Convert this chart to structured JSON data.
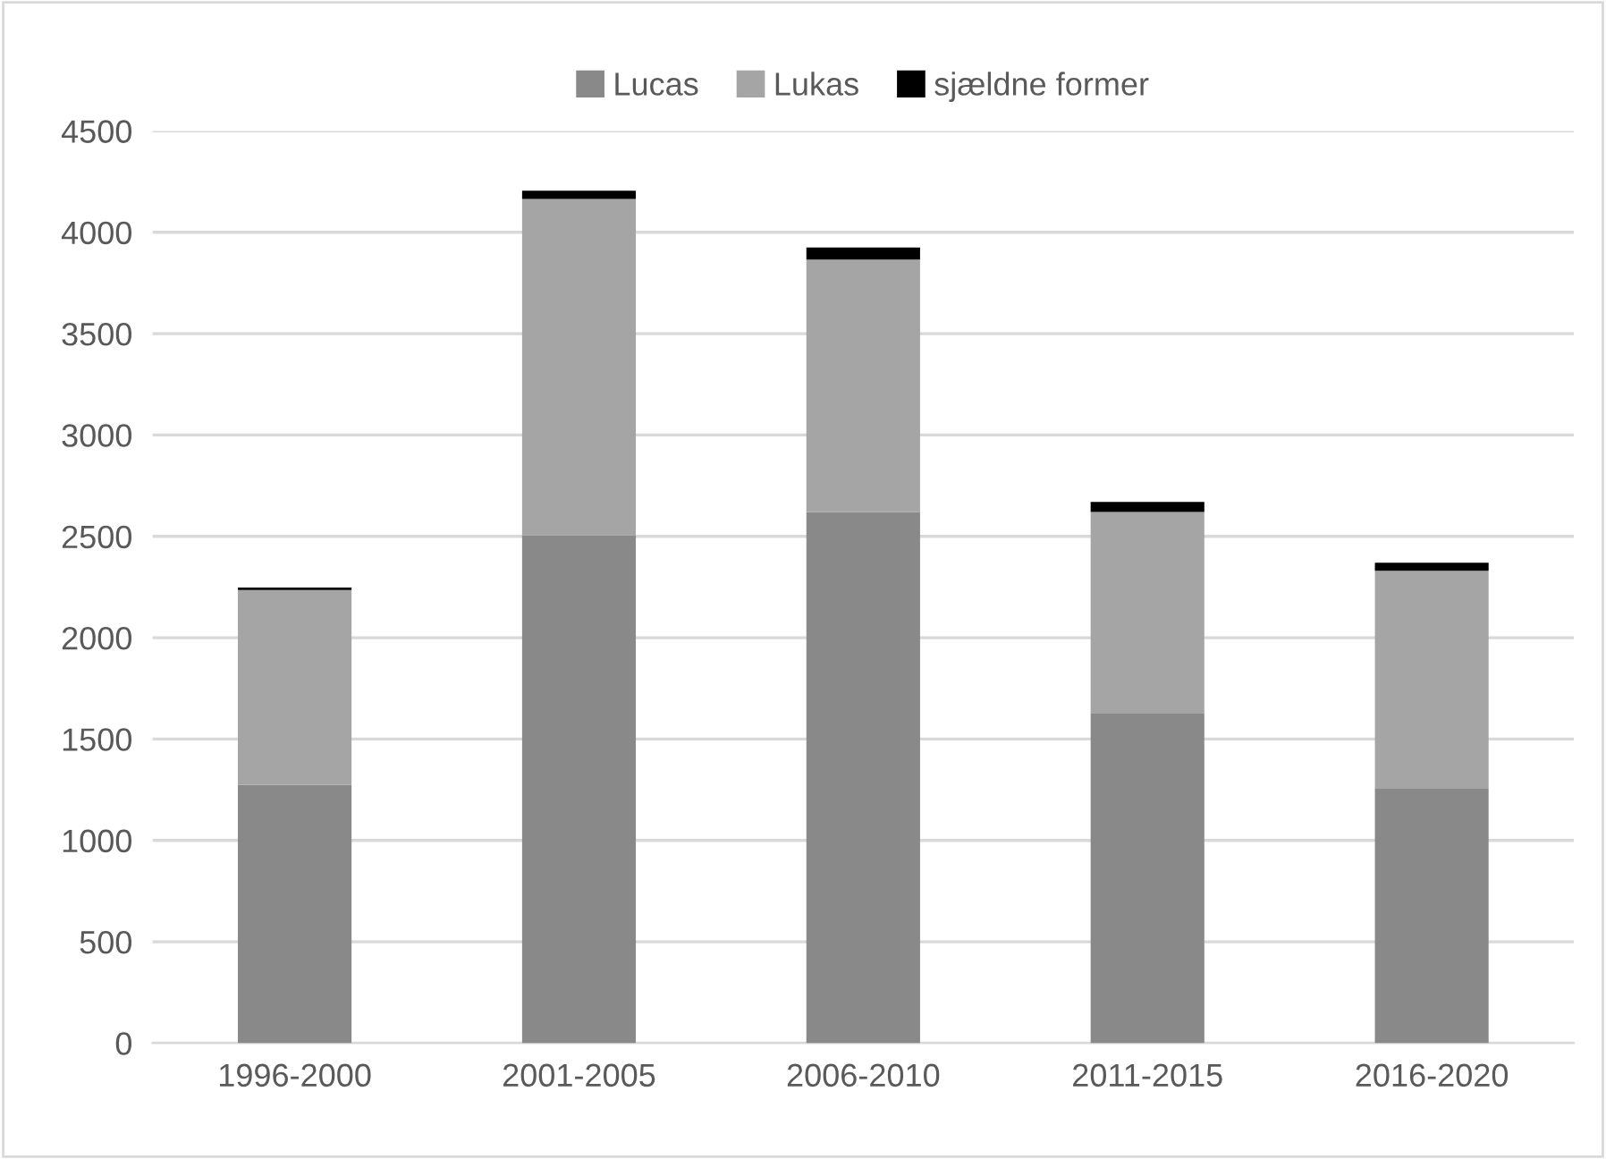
{
  "chart_data": {
    "type": "bar",
    "stacked": true,
    "categories": [
      "1996-2000",
      "2001-2005",
      "2006-2010",
      "2011-2015",
      "2016-2020"
    ],
    "series": [
      {
        "name": "Lucas",
        "color": "#898989",
        "values": [
          1275,
          2505,
          2620,
          1625,
          1255
        ]
      },
      {
        "name": "Lukas",
        "color": "#a5a5a5",
        "values": [
          960,
          1660,
          1245,
          995,
          1075
        ]
      },
      {
        "name": "sjældne former",
        "color": "#000000",
        "values": [
          12,
          40,
          60,
          50,
          40
        ]
      }
    ],
    "ylim": [
      0,
      4500
    ],
    "yticks": [
      0,
      500,
      1000,
      1500,
      2000,
      2500,
      3000,
      3500,
      4000,
      4500
    ],
    "grid": "y",
    "legend": "top"
  }
}
